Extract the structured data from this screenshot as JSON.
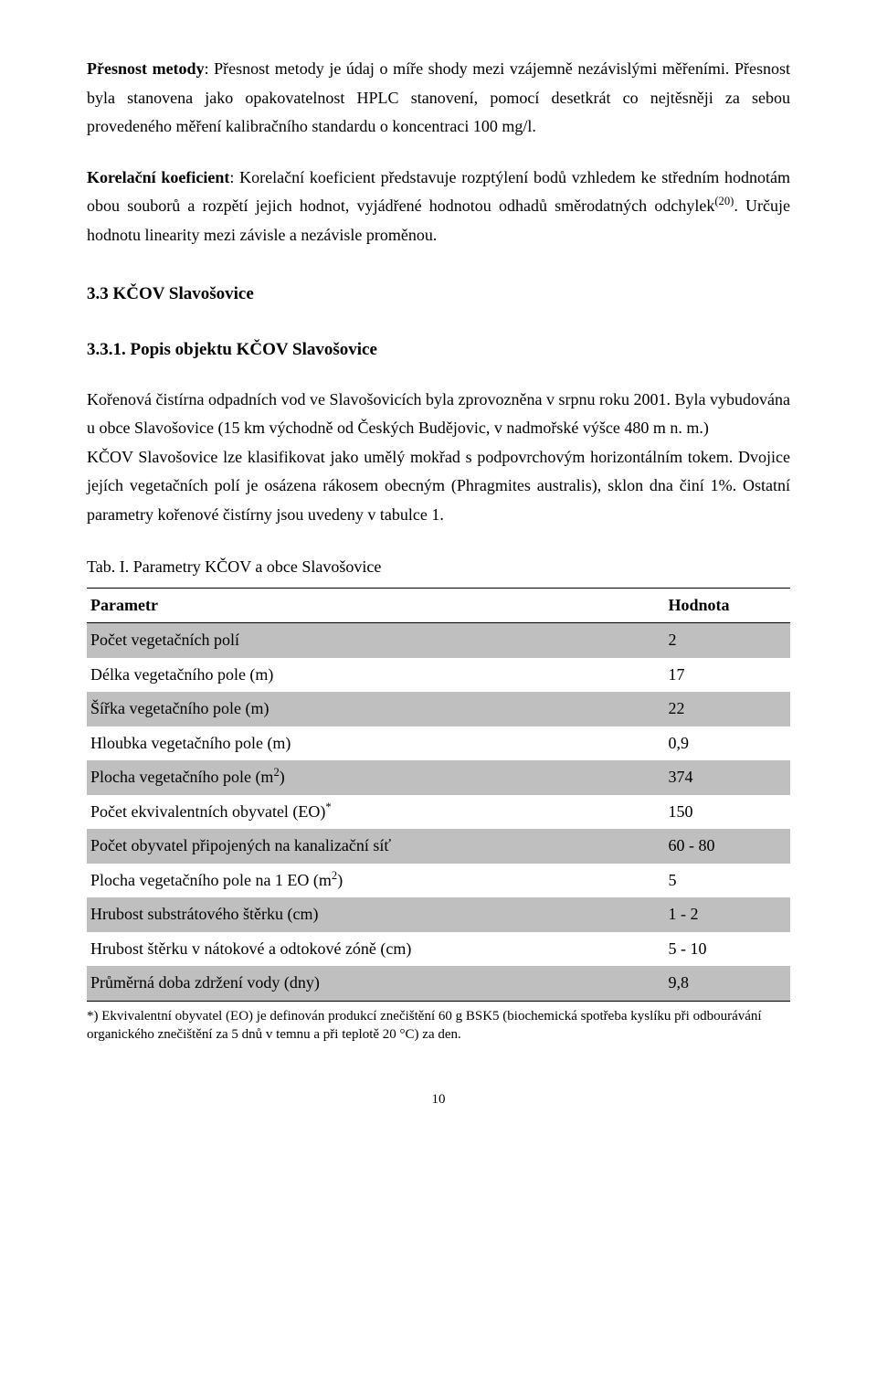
{
  "p1": {
    "head": "Přesnost metody",
    "body": ": Přesnost metody je údaj o míře shody mezi vzájemně nezávislými měřeními. Přesnost byla stanovena jako opakovatelnost HPLC stanovení, pomocí desetkrát co nejtěsněji za sebou provedeného měření kalibračního standardu o koncentraci 100 mg/l."
  },
  "p2": {
    "head": "Korelační koeficient",
    "body_a": ": Korelační koeficient představuje rozptýlení bodů vzhledem ke středním hodnotám obou souborů a rozpětí jejich hodnot, vyjádřené hodnotou odhadů směrodatných odchylek",
    "sup": "(20)",
    "body_b": ". Určuje hodnotu linearity mezi závisle a nezávisle proměnou."
  },
  "sec": "3.3 KČOV Slavošovice",
  "subsec": "3.3.1. Popis objektu KČOV Slavošovice",
  "p3": "Kořenová čistírna odpadních vod ve Slavošovicích byla zprovozněna v srpnu roku 2001. Byla vybudována u obce Slavošovice (15 km východně od Českých Budějovic, v nadmořské výšce 480 m n. m.)",
  "p4": "KČOV Slavošovice lze klasifikovat jako umělý mokřad s podpovrchovým horizontálním tokem. Dvojice jejích vegetačních polí je osázena rákosem obecným (Phragmites australis), sklon dna činí 1%. Ostatní parametry kořenové čistírny jsou uvedeny v tabulce 1.",
  "caption": "Tab. I. Parametry KČOV a obce Slavošovice",
  "table": {
    "header_param": "Parametr",
    "header_val": "Hodnota",
    "rows": [
      {
        "p": "Počet vegetačních polí",
        "v": "2",
        "sup": ""
      },
      {
        "p": "Délka vegetačního pole (m)",
        "v": "17",
        "sup": ""
      },
      {
        "p": "Šířka vegetačního pole (m)",
        "v": "22",
        "sup": ""
      },
      {
        "p": "Hloubka vegetačního pole (m)",
        "v": "0,9",
        "sup": ""
      },
      {
        "p": "Plocha vegetačního pole (m",
        "v": "374",
        "sup": "2",
        "close": ")"
      },
      {
        "p": "Počet ekvivalentních obyvatel (EO)",
        "v": "150",
        "sup": "*"
      },
      {
        "p": "Počet obyvatel připojených na kanalizační síť",
        "v": "60 - 80",
        "sup": ""
      },
      {
        "p": "Plocha vegetačního pole na 1 EO (m",
        "v": "5",
        "sup": "2",
        "close": ")"
      },
      {
        "p": "Hrubost substrátového štěrku (cm)",
        "v": "1 - 2",
        "sup": ""
      },
      {
        "p": "Hrubost štěrku v nátokové a odtokové zóně (cm)",
        "v": "5 - 10",
        "sup": ""
      },
      {
        "p": "Průměrná doba zdržení vody (dny)",
        "v": "9,8",
        "sup": ""
      }
    ]
  },
  "footnote": "*) Ekvivalentní obyvatel (EO) je definován produkcí znečištění 60 g BSK5 (biochemická spotřeba kyslíku při odbourávání organického znečištění za 5 dnů v temnu a při teplotě 20 °C) za den.",
  "page": "10",
  "colors": {
    "bg": "#ffffff",
    "text": "#000000",
    "shade": "#bfbfbf",
    "rule": "#000000"
  }
}
